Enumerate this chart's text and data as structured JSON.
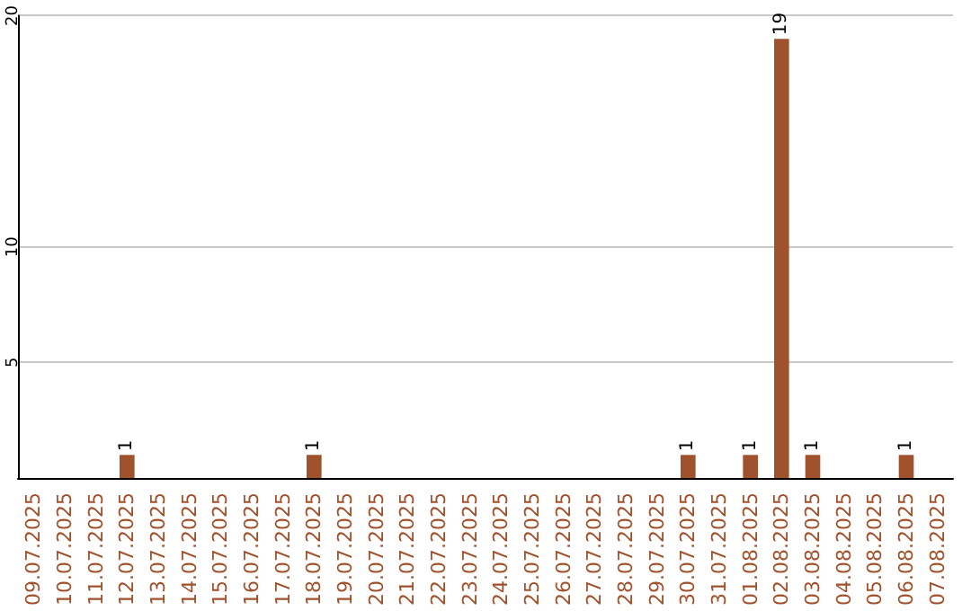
{
  "chart_data": {
    "type": "bar",
    "categories": [
      "09.07.2025",
      "10.07.2025",
      "11.07.2025",
      "12.07.2025",
      "13.07.2025",
      "14.07.2025",
      "15.07.2025",
      "16.07.2025",
      "17.07.2025",
      "18.07.2025",
      "19.07.2025",
      "20.07.2025",
      "21.07.2025",
      "22.07.2025",
      "23.07.2025",
      "24.07.2025",
      "25.07.2025",
      "26.07.2025",
      "27.07.2025",
      "28.07.2025",
      "29.07.2025",
      "30.07.2025",
      "31.07.2025",
      "01.08.2025",
      "02.08.2025",
      "03.08.2025",
      "04.08.2025",
      "05.08.2025",
      "06.08.2025",
      "07.08.2025"
    ],
    "values": [
      0,
      0,
      0,
      1,
      0,
      0,
      0,
      0,
      0,
      1,
      0,
      0,
      0,
      0,
      0,
      0,
      0,
      0,
      0,
      0,
      0,
      1,
      0,
      1,
      19,
      1,
      0,
      0,
      1,
      0
    ],
    "value_labels": [
      null,
      null,
      null,
      "1",
      null,
      null,
      null,
      null,
      null,
      "1",
      null,
      null,
      null,
      null,
      null,
      null,
      null,
      null,
      null,
      null,
      null,
      "1",
      null,
      "1",
      "19",
      "1",
      null,
      null,
      "1",
      null
    ],
    "color": "#a0522d",
    "ylim": [
      0,
      20
    ],
    "yticks": [
      5,
      10,
      20
    ],
    "grid": "y"
  }
}
